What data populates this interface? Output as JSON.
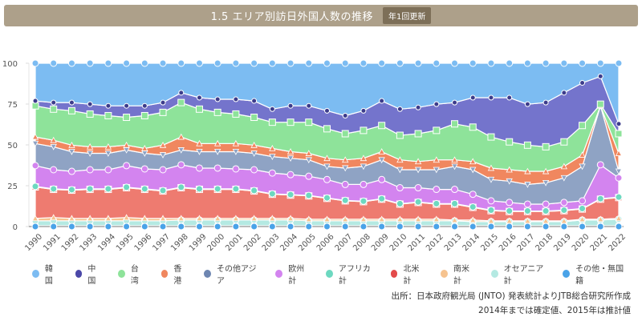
{
  "header": {
    "title": "1.5 エリア別訪日外国人数の推移",
    "badge": "年1回更新"
  },
  "source": {
    "line1": "出所：日本政府観光局 (JNTO) 発表統計よりJTB総合研究所作成",
    "line2": "2014年までは確定値、2015年は推計値"
  },
  "chart_data": {
    "type": "area",
    "stacked": "percent",
    "title": "1.5 エリア別訪日外国人数の推移",
    "xlabel": "",
    "ylabel": "",
    "ylim": [
      0,
      100
    ],
    "yticks": [
      "0",
      "25",
      "50",
      "75",
      "100"
    ],
    "grid": false,
    "legend_position": "bottom",
    "categories": [
      "1990",
      "1991",
      "1992",
      "1993",
      "1994",
      "1995",
      "1996",
      "1997",
      "1998",
      "1999",
      "2000",
      "2001",
      "2002",
      "2003",
      "2004",
      "2005",
      "2006",
      "2007",
      "2008",
      "2009",
      "2010",
      "2011",
      "2012",
      "2013",
      "2014",
      "2015",
      "2016",
      "2017",
      "2018",
      "2019",
      "2020",
      "2021",
      "2022"
    ],
    "series": [
      {
        "name": "韓国",
        "color": "#7cbcf2",
        "marker": "circle",
        "values": [
          23,
          24,
          24,
          25,
          26,
          26,
          26,
          24,
          18,
          21,
          22,
          22,
          23,
          28,
          26,
          26,
          29,
          32,
          29,
          23,
          28,
          27,
          25,
          24,
          21,
          21,
          21,
          25,
          24,
          18,
          12,
          8,
          37
        ]
      },
      {
        "name": "中国",
        "color": "#7474cc",
        "marker": "dot",
        "values": [
          3,
          4,
          5,
          6,
          6,
          7,
          6,
          6,
          6,
          7,
          8,
          9,
          10,
          8,
          10,
          10,
          11,
          11,
          12,
          15,
          16,
          16,
          16,
          13,
          18,
          24,
          27,
          25,
          27,
          30,
          26,
          17,
          6
        ]
      },
      {
        "name": "台湾",
        "color": "#8ee39a",
        "marker": "square",
        "values": [
          19,
          19,
          21,
          20,
          19,
          17,
          20,
          20,
          21,
          21,
          19,
          18,
          17,
          16,
          18,
          19,
          18,
          16,
          17,
          16,
          15,
          17,
          18,
          22,
          21,
          19,
          17,
          16,
          15,
          15,
          18,
          1,
          12
        ]
      },
      {
        "name": "香港",
        "color": "#f0875f",
        "marker": "triangle",
        "values": [
          4,
          4,
          4,
          4,
          4,
          3,
          3,
          6,
          8,
          5,
          5,
          5,
          5,
          5,
          4,
          4,
          5,
          5,
          5,
          5,
          6,
          5,
          6,
          4,
          5,
          7,
          7,
          8,
          7,
          7,
          7,
          0,
          11
        ]
      },
      {
        "name": "その他アジア",
        "color": "#8fa3c4",
        "marker": "triangle-down",
        "values": [
          13.5,
          14,
          12,
          10,
          10,
          9.5,
          9.5,
          9,
          9,
          10,
          10,
          10.5,
          10,
          10,
          10,
          10,
          8,
          10,
          11,
          12,
          11,
          11,
          12,
          14,
          15,
          13,
          13,
          12,
          13,
          15,
          21,
          36,
          4
        ]
      },
      {
        "name": "欧州計",
        "color": "#d384ef",
        "marker": "circle",
        "values": [
          12.7,
          11.7,
          11.2,
          11.7,
          11.7,
          13.2,
          12.2,
          12.7,
          13.7,
          12.7,
          12.7,
          12.2,
          12.7,
          12.7,
          12.2,
          11.7,
          11.2,
          9.7,
          10.2,
          11.7,
          9.7,
          8.7,
          8.7,
          8.7,
          7.7,
          5.7,
          5.2,
          4.2,
          4.2,
          4.7,
          4.7,
          20.7,
          11.7
        ]
      },
      {
        "name": "アフリカ計",
        "color": "#6dd8c0",
        "marker": "circle",
        "values": [
          0.3,
          0.3,
          0.3,
          0.3,
          0.3,
          0.3,
          0.3,
          0.3,
          0.3,
          0.3,
          0.3,
          0.3,
          0.3,
          0.3,
          0.3,
          0.3,
          0.3,
          0.3,
          0.3,
          0.3,
          0.3,
          0.3,
          0.3,
          0.3,
          0.3,
          0.3,
          0.3,
          0.3,
          0.3,
          0.3,
          0.3,
          0.3,
          0.3
        ]
      },
      {
        "name": "北米計",
        "color": "#ee7b70",
        "marker": "square",
        "values": [
          19.2,
          17.2,
          17.2,
          17.7,
          17.7,
          18.2,
          17.7,
          16.7,
          18.7,
          17.7,
          17.7,
          17.7,
          16.7,
          14.7,
          14.2,
          14.2,
          12.7,
          11.2,
          10.7,
          12.2,
          9.2,
          10.2,
          9.2,
          9.7,
          7.7,
          6.2,
          5.7,
          5.7,
          5.7,
          6.2,
          6.2,
          12.2,
          12.7
        ]
      },
      {
        "name": "南米計",
        "color": "#f6c38f",
        "marker": "triangle",
        "values": [
          1.5,
          2,
          1.5,
          1.5,
          1.5,
          2,
          1.5,
          1.5,
          1,
          1,
          1,
          1,
          1,
          1,
          1,
          1,
          1,
          1,
          1,
          1,
          1,
          1,
          1,
          0.5,
          1,
          0.5,
          0.5,
          0.5,
          0.5,
          0.5,
          0.5,
          0.5,
          0.5
        ]
      },
      {
        "name": "オセアニア計",
        "color": "#b4e9e2",
        "marker": "circle",
        "values": [
          3,
          3,
          3,
          3,
          3,
          3,
          3,
          3,
          3.5,
          3.5,
          3.5,
          3.5,
          3.5,
          3.5,
          3.5,
          3,
          3,
          3,
          3,
          3,
          3,
          3,
          3,
          3,
          2.5,
          2.5,
          2.5,
          2.5,
          2.5,
          2.5,
          3.5,
          3.5,
          4
        ]
      },
      {
        "name": "その他・無国籍",
        "color": "#4aa3e8",
        "marker": "circle",
        "values": [
          0.5,
          0.5,
          0.5,
          0.5,
          0.5,
          0.5,
          0.5,
          0.5,
          0.5,
          0.5,
          0.5,
          0.5,
          0.5,
          0.5,
          0.5,
          0.5,
          0.5,
          0.5,
          0.5,
          0.5,
          0.5,
          0.5,
          0.5,
          0.5,
          0.5,
          0.5,
          0.5,
          0.5,
          0.5,
          0.5,
          0.5,
          0.5,
          0.5
        ]
      }
    ]
  }
}
